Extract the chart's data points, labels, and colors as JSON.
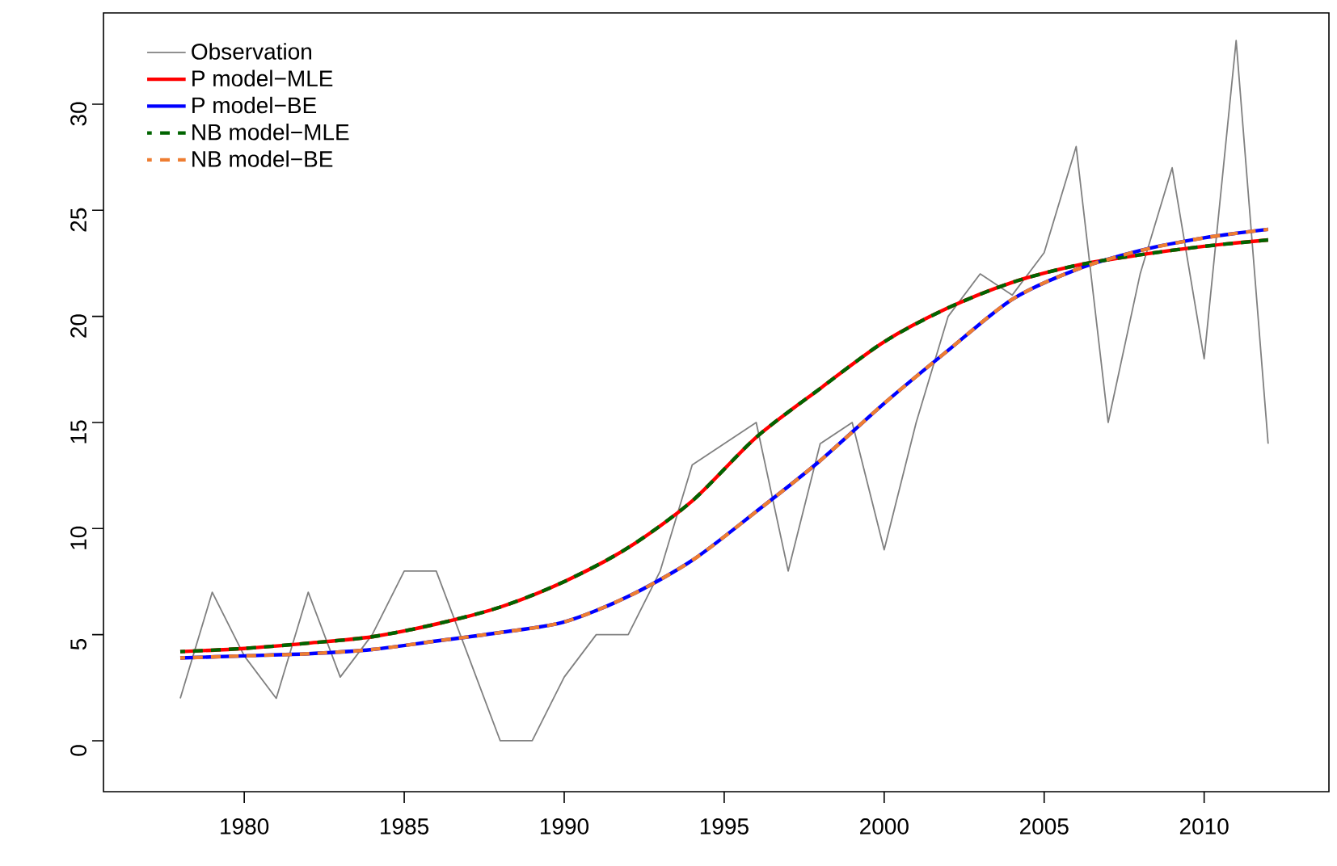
{
  "chart_data": {
    "type": "line",
    "xlim": [
      1975.6,
      2013.9
    ],
    "ylim": [
      -2.4,
      34.3
    ],
    "xticks": [
      1980,
      1985,
      1990,
      1995,
      2000,
      2005,
      2010
    ],
    "yticks": [
      0,
      5,
      10,
      15,
      20,
      25,
      30
    ],
    "grid": false,
    "legend": "top left",
    "marker": "none",
    "series": [
      {
        "name": "Observation",
        "color": "#808080",
        "line_style": "solid",
        "x": [
          1978,
          1979,
          1980,
          1981,
          1982,
          1983,
          1984,
          1985,
          1986,
          1987,
          1988,
          1989,
          1990,
          1991,
          1992,
          1993,
          1994,
          1995,
          1996,
          1997,
          1998,
          1999,
          2000,
          2001,
          2002,
          2003,
          2004,
          2005,
          2006,
          2007,
          2008,
          2009,
          2010,
          2011,
          2012
        ],
        "values": [
          2,
          7,
          4,
          2,
          7,
          3,
          5,
          8,
          8,
          4,
          0,
          0,
          3,
          5,
          5,
          8,
          13,
          14,
          15,
          8,
          14,
          15,
          9,
          15,
          20,
          22,
          21,
          23,
          28,
          15,
          22,
          27,
          18,
          33,
          14
        ]
      },
      {
        "name": "P model−MLE",
        "color": "#ff0000",
        "line_style": "solid",
        "x": [
          1978,
          1980,
          1982,
          1984,
          1986,
          1988,
          1990,
          1992,
          1994,
          1996,
          1998,
          2000,
          2002,
          2004,
          2006,
          2008,
          2010,
          2012
        ],
        "values": [
          4.2,
          4.35,
          4.6,
          4.9,
          5.5,
          6.3,
          7.5,
          9.1,
          11.3,
          14.3,
          16.6,
          18.8,
          20.4,
          21.6,
          22.4,
          22.9,
          23.3,
          23.6
        ]
      },
      {
        "name": "P model−BE",
        "color": "#0000ff",
        "line_style": "solid",
        "x": [
          1978,
          1980,
          1982,
          1984,
          1986,
          1988,
          1990,
          1992,
          1994,
          1996,
          1998,
          2000,
          2002,
          2004,
          2006,
          2008,
          2010,
          2012
        ],
        "values": [
          3.9,
          4.0,
          4.1,
          4.3,
          4.7,
          5.1,
          5.6,
          6.8,
          8.5,
          10.8,
          13.2,
          15.9,
          18.4,
          20.8,
          22.2,
          23.1,
          23.7,
          24.1
        ]
      },
      {
        "name": "NB model−MLE",
        "color": "#006400",
        "line_style": "dashed",
        "x": [
          1978,
          1980,
          1982,
          1984,
          1986,
          1988,
          1990,
          1992,
          1994,
          1996,
          1998,
          2000,
          2002,
          2004,
          2006,
          2008,
          2010,
          2012
        ],
        "values": [
          4.2,
          4.35,
          4.6,
          4.9,
          5.5,
          6.3,
          7.5,
          9.1,
          11.3,
          14.3,
          16.6,
          18.8,
          20.4,
          21.6,
          22.4,
          22.9,
          23.3,
          23.6
        ]
      },
      {
        "name": "NB model−BE",
        "color": "#ee7d31",
        "line_style": "dashed",
        "x": [
          1978,
          1980,
          1982,
          1984,
          1986,
          1988,
          1990,
          1992,
          1994,
          1996,
          1998,
          2000,
          2002,
          2004,
          2006,
          2008,
          2010,
          2012
        ],
        "values": [
          3.9,
          4.0,
          4.1,
          4.3,
          4.7,
          5.1,
          5.6,
          6.8,
          8.5,
          10.8,
          13.2,
          15.9,
          18.4,
          20.8,
          22.2,
          23.1,
          23.7,
          24.1
        ]
      }
    ]
  }
}
